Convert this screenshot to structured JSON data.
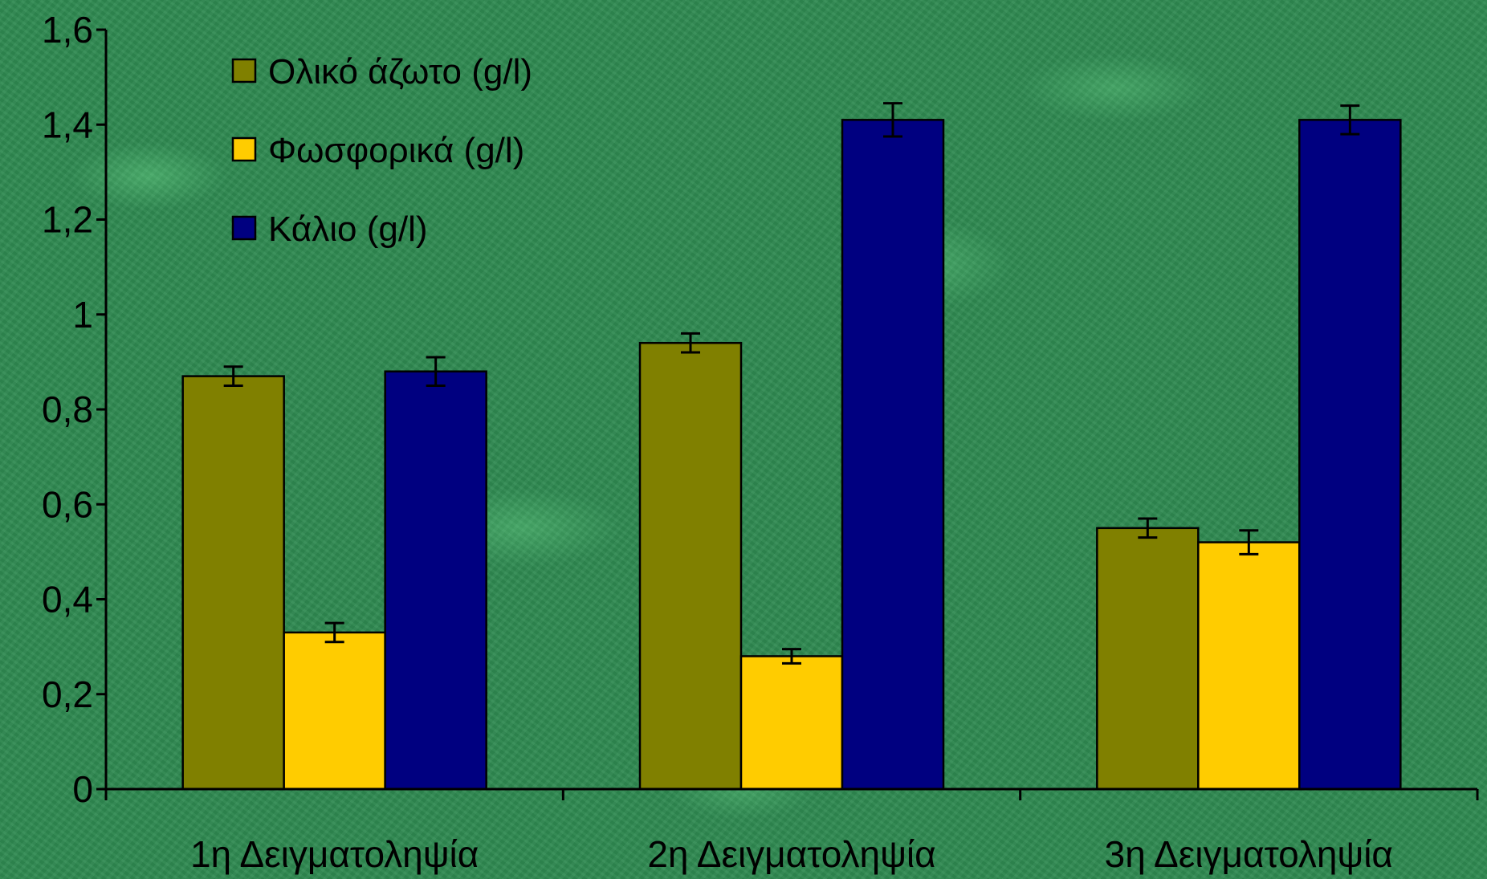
{
  "chart_data": {
    "type": "bar",
    "categories": [
      "1η Δειγματοληψία",
      "2η Δειγματοληψία",
      "3η Δειγματοληψία"
    ],
    "series": [
      {
        "name": "Ολικό άζωτο (g/l)",
        "color": "#808000",
        "values": [
          0.87,
          0.94,
          0.55
        ],
        "errors": [
          0.02,
          0.02,
          0.02
        ]
      },
      {
        "name": "Φωσφορικά (g/l)",
        "color": "#ffcc00",
        "values": [
          0.33,
          0.28,
          0.52
        ],
        "errors": [
          0.02,
          0.015,
          0.025
        ]
      },
      {
        "name": "Κάλιο (g/l)",
        "color": "#000080",
        "values": [
          0.88,
          1.41,
          1.41
        ],
        "errors": [
          0.03,
          0.035,
          0.03
        ]
      }
    ],
    "ylim": [
      0,
      1.6
    ],
    "yticks": [
      "0",
      "0,2",
      "0,4",
      "0,6",
      "0,8",
      "1",
      "1,2",
      "1,4",
      "1,6"
    ],
    "title": "",
    "xlabel": "",
    "ylabel": "",
    "legend_position": "top-left",
    "grid": false
  }
}
